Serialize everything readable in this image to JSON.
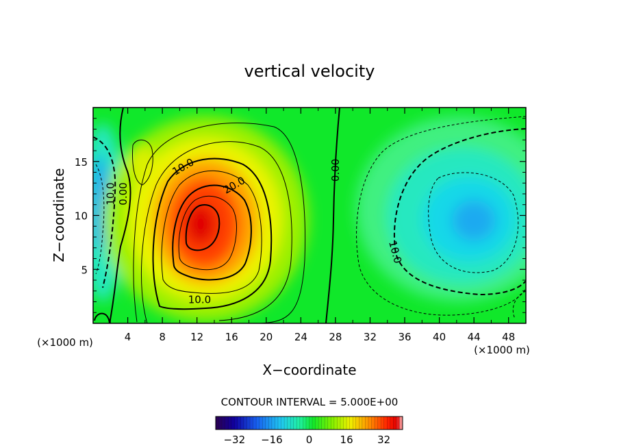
{
  "chart_data": {
    "type": "heatmap",
    "title": "vertical velocity",
    "xlabel": "X−coordinate",
    "ylabel": "Z−coordinate",
    "x_unit_left": "(×1000 m)",
    "x_unit_right": "(×1000 m)",
    "xlim": [
      0,
      50
    ],
    "ylim": [
      0,
      20
    ],
    "x_ticks": [
      4,
      8,
      12,
      16,
      20,
      24,
      28,
      32,
      36,
      40,
      44,
      48
    ],
    "y_ticks": [
      5,
      10,
      15
    ],
    "field_features": [
      {
        "kind": "updraft-max",
        "x": 12.3,
        "z": 9.3,
        "value": 36
      },
      {
        "kind": "downdraft-min",
        "x": 44.2,
        "z": 9.7,
        "value": -14
      },
      {
        "kind": "downdraft-min",
        "x": 1.0,
        "z": 10.5,
        "value": -14
      },
      {
        "kind": "small-updraft",
        "x": 5.5,
        "z": 15.2,
        "value": 10
      }
    ],
    "contour_labels": [
      {
        "text": "10.0",
        "x": 10.4,
        "z": 14.5
      },
      {
        "text": "20.0",
        "x": 16.3,
        "z": 12.8
      },
      {
        "text": "10.0",
        "x": 12.3,
        "z": 2.2
      },
      {
        "text": "0.00",
        "x": 28.0,
        "z": 14.2
      },
      {
        "text": "10.0",
        "x": 34.9,
        "z": 6.6
      },
      {
        "text": "10.0",
        "x": 2.0,
        "z": 12.0
      },
      {
        "text": "0.00",
        "x": 3.5,
        "z": 12.0
      }
    ],
    "contour_interval_text": "CONTOUR INTERVAL = 5.000E+00",
    "colorbar": {
      "min": -40,
      "max": 40,
      "ticks": [
        "−32",
        "−16",
        "0",
        "16",
        "32"
      ],
      "tick_values": [
        -32,
        -16,
        0,
        16,
        32
      ]
    }
  }
}
